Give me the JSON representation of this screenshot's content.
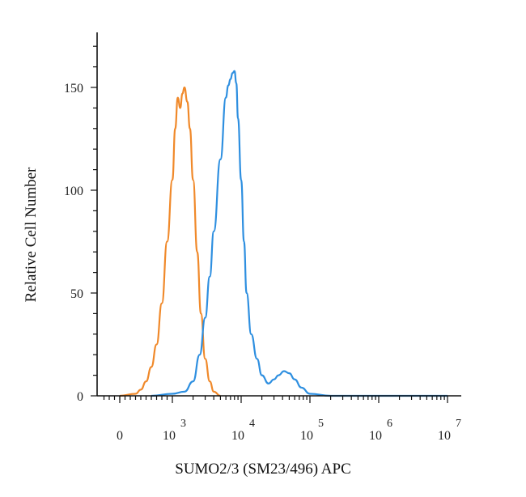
{
  "chart_data": {
    "type": "line",
    "title": "",
    "xlabel": "SUMO2/3 (SM23/496) APC",
    "ylabel": "Relative Cell Number",
    "x_scale": "biexponential",
    "x_ticks": [
      {
        "value": 0,
        "base": "0",
        "exp": ""
      },
      {
        "value": 1000,
        "base": "10",
        "exp": "3"
      },
      {
        "value": 10000,
        "base": "10",
        "exp": "4"
      },
      {
        "value": 100000,
        "base": "10",
        "exp": "5"
      },
      {
        "value": 1000000,
        "base": "10",
        "exp": "6"
      },
      {
        "value": 10000000,
        "base": "10",
        "exp": "7"
      }
    ],
    "y_ticks": [
      0,
      50,
      100,
      150
    ],
    "ylim": [
      0,
      175
    ],
    "grid": false,
    "legend": "none",
    "series": [
      {
        "color": "#F0892A",
        "points": [
          [
            0,
            0
          ],
          [
            300,
            1
          ],
          [
            400,
            3
          ],
          [
            500,
            7
          ],
          [
            600,
            14
          ],
          [
            700,
            25
          ],
          [
            800,
            45
          ],
          [
            900,
            75
          ],
          [
            1000,
            105
          ],
          [
            1100,
            130
          ],
          [
            1200,
            145
          ],
          [
            1300,
            140
          ],
          [
            1400,
            147
          ],
          [
            1500,
            150
          ],
          [
            1650,
            143
          ],
          [
            1800,
            130
          ],
          [
            2000,
            105
          ],
          [
            2300,
            70
          ],
          [
            2600,
            40
          ],
          [
            3000,
            18
          ],
          [
            3500,
            7
          ],
          [
            4000,
            2
          ],
          [
            5000,
            0
          ]
        ]
      },
      {
        "color": "#2E8FE0",
        "points": [
          [
            600,
            0
          ],
          [
            1000,
            1
          ],
          [
            1500,
            2
          ],
          [
            2000,
            7
          ],
          [
            2500,
            20
          ],
          [
            3000,
            38
          ],
          [
            3500,
            58
          ],
          [
            4000,
            80
          ],
          [
            5000,
            115
          ],
          [
            6000,
            145
          ],
          [
            6500,
            151
          ],
          [
            7000,
            154
          ],
          [
            7500,
            157
          ],
          [
            8000,
            158
          ],
          [
            8500,
            152
          ],
          [
            9000,
            135
          ],
          [
            10000,
            105
          ],
          [
            11000,
            75
          ],
          [
            12000,
            50
          ],
          [
            14000,
            30
          ],
          [
            17000,
            18
          ],
          [
            20000,
            10
          ],
          [
            25000,
            6
          ],
          [
            30000,
            8
          ],
          [
            35000,
            10
          ],
          [
            42000,
            12
          ],
          [
            50000,
            11
          ],
          [
            60000,
            8
          ],
          [
            75000,
            4
          ],
          [
            100000,
            1
          ],
          [
            200000,
            0
          ],
          [
            1000000,
            0
          ],
          [
            10000000,
            0
          ]
        ]
      }
    ]
  }
}
